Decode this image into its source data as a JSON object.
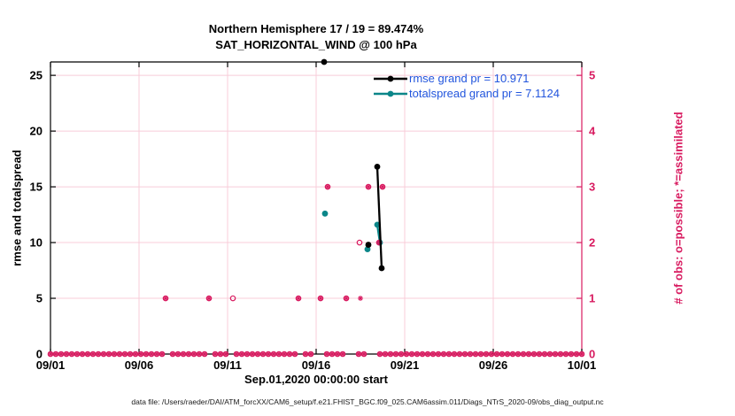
{
  "footer": "data file: /Users/raeder/DAI/ATM_forcXX/CAM6_setup/f.e21.FHIST_BGC.f09_025.CAM6assim.011/Diags_NTrS_2020-09/obs_diag_output.nc",
  "colors": {
    "rmse": "#000000",
    "totalspread": "#0b8689",
    "obs": "#d81b60",
    "grid": "#f8ccd9",
    "legend_text": "#2255dd",
    "axis": "#000000"
  },
  "chart_data": {
    "type": "line",
    "title": "Northern Hemisphere 17 / 19 = 89.474%",
    "subtitle": "SAT_HORIZONTAL_WIND @ 100 hPa",
    "xlabel": "Sep.01,2020 00:00:00 start",
    "ylabel_left": "rmse and totalspread",
    "ylabel_right": "# of obs: o=possible; *=assimilated",
    "grid": true,
    "x_axis": {
      "range_days": [
        0,
        30
      ],
      "tick_days": [
        0,
        5,
        10,
        15,
        20,
        25,
        30
      ],
      "tick_labels": [
        "09/01",
        "09/06",
        "09/11",
        "09/16",
        "09/21",
        "09/26",
        "10/01"
      ]
    },
    "y_axis_left": {
      "range": [
        0,
        26.2
      ],
      "ticks": [
        0,
        5,
        10,
        15,
        20,
        25
      ]
    },
    "y_axis_right": {
      "range": [
        0,
        5.24
      ],
      "ticks": [
        0,
        1,
        2,
        3,
        4,
        5
      ]
    },
    "legend": {
      "position": "top-right",
      "entries": [
        {
          "series": "rmse",
          "label": "rmse grand pr = 10.971"
        },
        {
          "series": "totalspread",
          "label": "totalspread grand pr = 7.1124"
        }
      ]
    },
    "series": [
      {
        "name": "rmse",
        "color_key": "rmse",
        "segments": [
          [
            [
              15.45,
              26.2
            ]
          ],
          [
            [
              17.95,
              9.8
            ]
          ],
          [
            [
              18.45,
              16.8
            ],
            [
              18.7,
              7.7
            ]
          ]
        ]
      },
      {
        "name": "totalspread",
        "color_key": "totalspread",
        "segments": [
          [
            [
              15.5,
              12.6
            ]
          ],
          [
            [
              17.9,
              9.4
            ]
          ],
          [
            [
              18.45,
              11.6
            ],
            [
              18.6,
              10.0
            ]
          ]
        ]
      }
    ],
    "obs_counts": {
      "axis": "right",
      "possible_and_assimilated": [
        [
          6.5,
          1
        ],
        [
          8.95,
          1
        ],
        [
          14.0,
          1
        ],
        [
          15.25,
          1
        ],
        [
          15.65,
          3
        ],
        [
          16.7,
          1
        ],
        [
          17.95,
          3
        ],
        [
          18.55,
          2
        ],
        [
          18.75,
          3
        ]
      ],
      "possible_only": [
        [
          10.3,
          1
        ],
        [
          17.45,
          2
        ]
      ],
      "assimilated_only": [
        [
          17.5,
          1
        ]
      ],
      "zero_row": {
        "start_day": 0,
        "end_day": 30,
        "step_day": 0.3,
        "gap_ranges": [
          [
            6.35,
            6.65
          ],
          [
            8.8,
            9.1
          ],
          [
            10.15,
            10.45
          ],
          [
            13.85,
            14.15
          ],
          [
            14.9,
            15.45
          ],
          [
            16.7,
            17.35
          ],
          [
            17.8,
            18.35
          ]
        ]
      }
    }
  }
}
